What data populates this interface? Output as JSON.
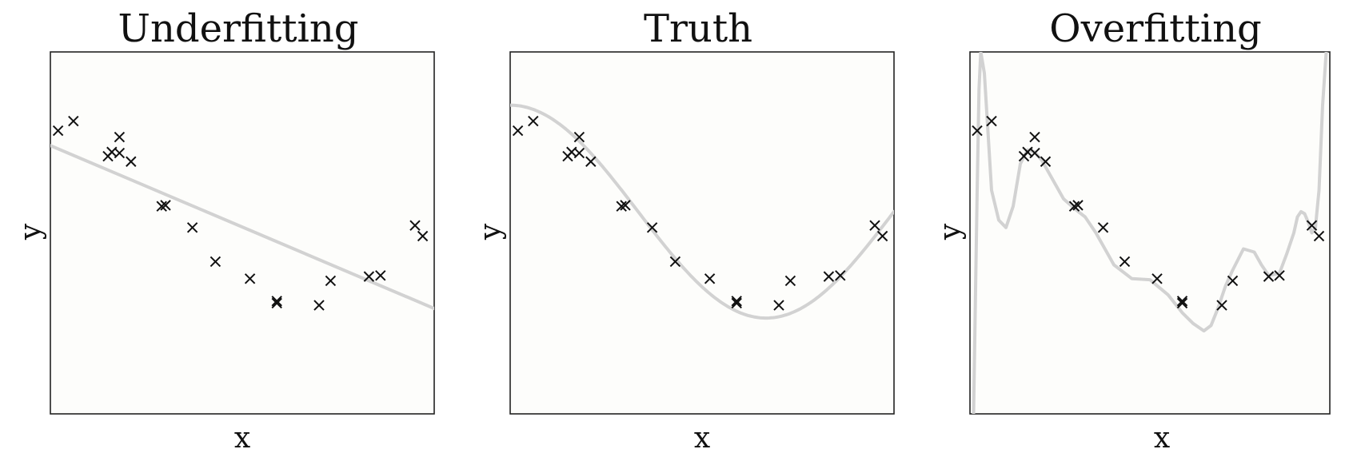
{
  "chart_data": [
    {
      "type": "scatter",
      "title": "Underfitting",
      "xlabel": "x",
      "ylabel": "y",
      "xlim": [
        0,
        1
      ],
      "ylim": [
        -1.9,
        1.5
      ],
      "grid": false,
      "points": {
        "x": [
          0.02,
          0.06,
          0.15,
          0.16,
          0.18,
          0.18,
          0.21,
          0.29,
          0.3,
          0.37,
          0.43,
          0.52,
          0.59,
          0.59,
          0.7,
          0.73,
          0.83,
          0.86,
          0.95,
          0.97
        ],
        "y": [
          0.76,
          0.85,
          0.52,
          0.56,
          0.7,
          0.55,
          0.47,
          0.05,
          0.06,
          -0.15,
          -0.47,
          -0.63,
          -0.86,
          -0.84,
          -0.88,
          -0.65,
          -0.61,
          -0.6,
          -0.13,
          -0.23
        ]
      },
      "fit": {
        "kind": "linear",
        "slope": -1.53,
        "intercept": 0.62,
        "color": "#d2d2d2"
      }
    },
    {
      "type": "scatter",
      "title": "Truth",
      "xlabel": "x",
      "ylabel": "y",
      "xlim": [
        0,
        1
      ],
      "ylim": [
        -1.9,
        1.5
      ],
      "grid": false,
      "points": {
        "x": [
          0.02,
          0.06,
          0.15,
          0.16,
          0.18,
          0.18,
          0.21,
          0.29,
          0.3,
          0.37,
          0.43,
          0.52,
          0.59,
          0.59,
          0.7,
          0.73,
          0.83,
          0.86,
          0.95,
          0.97
        ],
        "y": [
          0.76,
          0.85,
          0.52,
          0.56,
          0.7,
          0.55,
          0.47,
          0.05,
          0.06,
          -0.15,
          -0.47,
          -0.63,
          -0.86,
          -0.84,
          -0.88,
          -0.65,
          -0.61,
          -0.6,
          -0.13,
          -0.23
        ]
      },
      "fit": {
        "kind": "true_function",
        "formula": "cos(1.5*pi*x)",
        "color": "#d2d2d2"
      }
    },
    {
      "type": "scatter",
      "title": "Overfitting",
      "xlabel": "x",
      "ylabel": "y",
      "xlim": [
        0,
        1
      ],
      "ylim": [
        -1.9,
        1.5
      ],
      "grid": false,
      "points": {
        "x": [
          0.02,
          0.06,
          0.15,
          0.16,
          0.18,
          0.18,
          0.21,
          0.29,
          0.3,
          0.37,
          0.43,
          0.52,
          0.59,
          0.59,
          0.7,
          0.73,
          0.83,
          0.86,
          0.95,
          0.97
        ],
        "y": [
          0.76,
          0.85,
          0.52,
          0.56,
          0.7,
          0.55,
          0.47,
          0.05,
          0.06,
          -0.15,
          -0.47,
          -0.63,
          -0.86,
          -0.84,
          -0.88,
          -0.65,
          -0.61,
          -0.6,
          -0.13,
          -0.23
        ]
      },
      "fit": {
        "kind": "high_degree_polynomial",
        "color": "#d2d2d2",
        "curve": {
          "x": [
            0.01,
            0.02,
            0.025,
            0.03,
            0.04,
            0.06,
            0.08,
            0.1,
            0.12,
            0.14,
            0.16,
            0.18,
            0.2,
            0.23,
            0.26,
            0.29,
            0.32,
            0.35,
            0.4,
            0.45,
            0.5,
            0.55,
            0.59,
            0.62,
            0.65,
            0.67,
            0.69,
            0.71,
            0.73,
            0.76,
            0.79,
            0.81,
            0.83,
            0.86,
            0.88,
            0.9,
            0.91,
            0.92,
            0.93,
            0.94,
            0.95,
            0.96,
            0.97,
            0.98,
            0.99
          ],
          "y": [
            -1.9,
            0.2,
            1.15,
            1.5,
            1.3,
            0.2,
            -0.08,
            -0.15,
            0.05,
            0.45,
            0.58,
            0.56,
            0.48,
            0.3,
            0.12,
            0.03,
            -0.05,
            -0.2,
            -0.5,
            -0.63,
            -0.64,
            -0.78,
            -0.95,
            -1.05,
            -1.12,
            -1.07,
            -0.9,
            -0.7,
            -0.55,
            -0.35,
            -0.38,
            -0.5,
            -0.6,
            -0.58,
            -0.4,
            -0.2,
            -0.05,
            0.0,
            -0.02,
            -0.1,
            -0.2,
            -0.15,
            0.2,
            1.0,
            1.5
          ]
        }
      }
    }
  ]
}
